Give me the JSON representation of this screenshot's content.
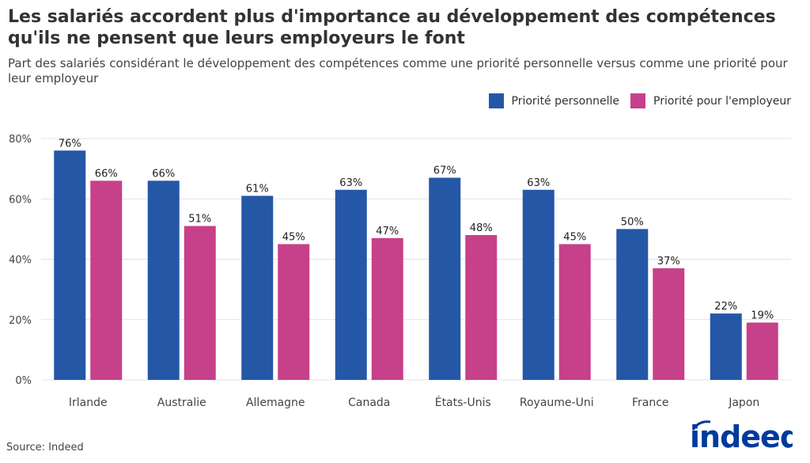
{
  "title": "Les salariés accordent plus d'importance au développement des compétences qu'ils ne pensent que leurs employeurs le font",
  "subtitle": "Part des salariés considérant le développement des compétences comme une priorité personnelle versus comme une priorité pour leur employeur",
  "source": "Source: Indeed",
  "logo_text": "indeed",
  "colors": {
    "personal": "#2557a7",
    "employer": "#c7408a",
    "logo": "#003a9b"
  },
  "chart_data": {
    "type": "bar",
    "title": "",
    "xlabel": "",
    "ylabel": "",
    "ylim": [
      0,
      80
    ],
    "yticks": [
      "0%",
      "20%",
      "40%",
      "60%",
      "80%"
    ],
    "grid": true,
    "legend_position": "top-right",
    "categories": [
      "Irlande",
      "Australie",
      "Allemagne",
      "Canada",
      "États-Unis",
      "Royaume-Uni",
      "France",
      "Japon"
    ],
    "series": [
      {
        "name": "Priorité personnelle",
        "values": [
          76,
          66,
          61,
          63,
          67,
          63,
          50,
          22
        ],
        "labels": [
          "76%",
          "66%",
          "61%",
          "63%",
          "67%",
          "63%",
          "50%",
          "22%"
        ]
      },
      {
        "name": "Priorité pour l'employeur",
        "values": [
          66,
          51,
          45,
          47,
          48,
          45,
          37,
          19
        ],
        "labels": [
          "66%",
          "51%",
          "45%",
          "47%",
          "48%",
          "45%",
          "37%",
          "19%"
        ]
      }
    ]
  }
}
